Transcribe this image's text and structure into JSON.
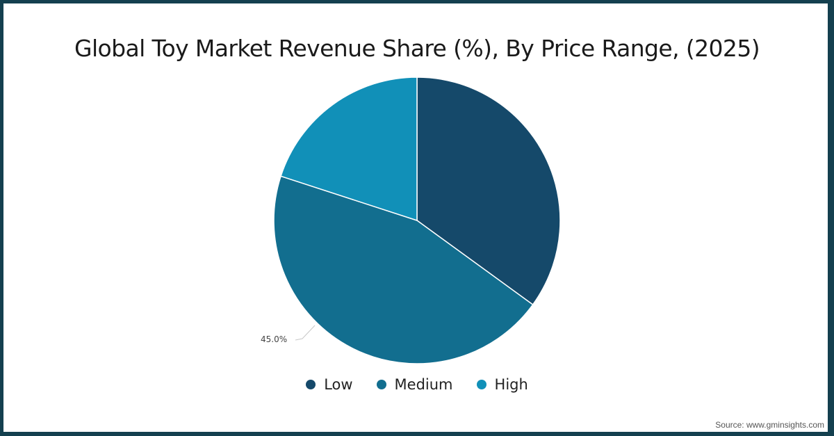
{
  "chart_data": {
    "type": "pie",
    "title": "Global Toy Market Revenue Share (%), By Price Range, (2025)",
    "categories": [
      "Low",
      "Medium",
      "High"
    ],
    "values": [
      35.0,
      45.0,
      20.0
    ],
    "colors": [
      "#15496a",
      "#126e8f",
      "#1190b8"
    ],
    "data_labels": [
      {
        "category": "Medium",
        "text": "45.0%"
      }
    ],
    "legend_position": "bottom",
    "start_angle_deg": -90,
    "direction": "clockwise"
  },
  "title": "Global Toy Market Revenue Share (%), By Price Range, (2025)",
  "legend": {
    "items": [
      {
        "label": "Low",
        "color": "#15496a"
      },
      {
        "label": "Medium",
        "color": "#126e8f"
      },
      {
        "label": "High",
        "color": "#1190b8"
      }
    ]
  },
  "labels": {
    "medium_value": "45.0%"
  },
  "source": "Source: www.gminsights.com",
  "colors": {
    "frame": "#14404f",
    "background": "#ffffff"
  }
}
